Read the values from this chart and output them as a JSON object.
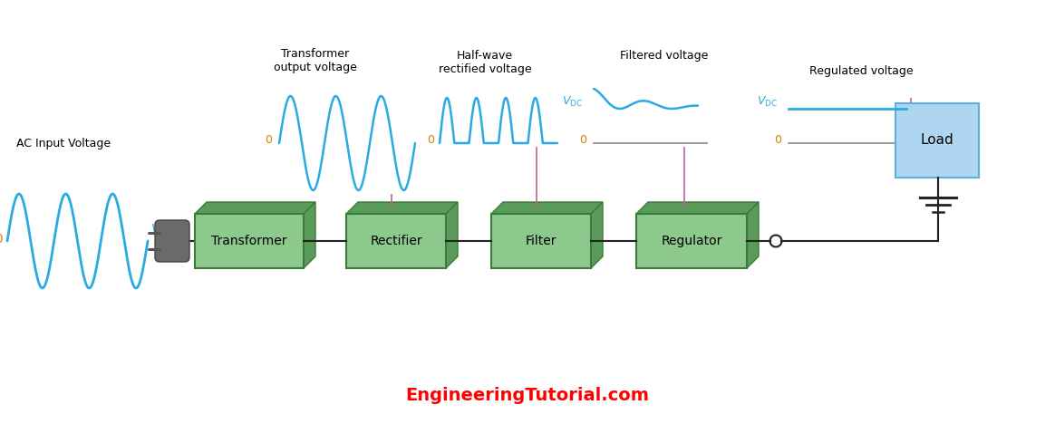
{
  "title": "EngineeringTutorial.com",
  "title_color": "#FF0000",
  "bg_color": "#FFFFFF",
  "wave_color": "#29ABE2",
  "box_face_color": "#8DC98D",
  "box_dark_color": "#5A9B5A",
  "box_edge_color": "#3A7A3A",
  "load_color": "#AED6F1",
  "load_edge_color": "#5DADE2",
  "line_color": "#222222",
  "pink_line_color": "#C060A0",
  "zero_color": "#CC8800",
  "vac_color": "#29ABE2",
  "vdc_color": "#29ABE2",
  "plug_color": "#666666",
  "ac_label": "AC Input Voltage",
  "transformer_label": "Transformer",
  "rectifier_label": "Rectifier",
  "filter_label": "Filter",
  "regulator_label": "Regulator",
  "load_label": "Load",
  "transformer_output_label": "Transformer\noutput voltage",
  "halfwave_label": "Half-wave\nrectified voltage",
  "filtered_label": "Filtered voltage",
  "regulated_label": "Regulated voltage"
}
